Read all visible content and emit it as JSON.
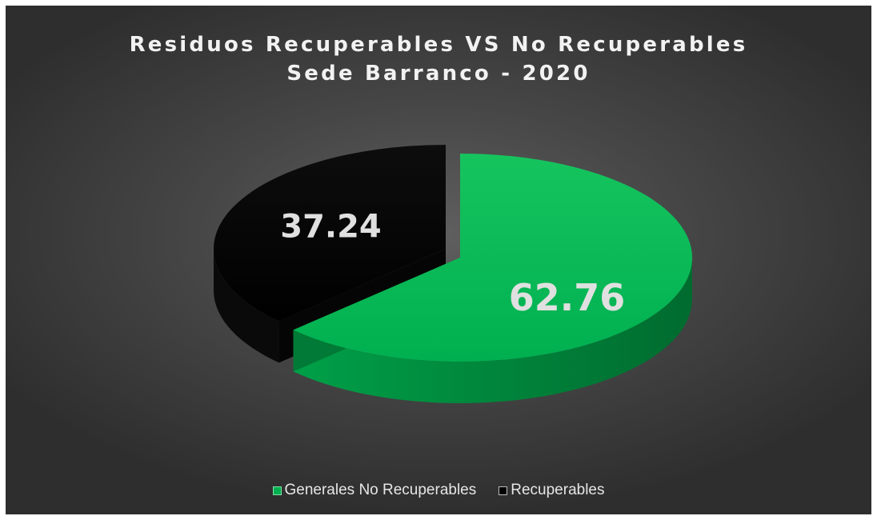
{
  "chart_data": {
    "type": "pie",
    "title": "Residuos Recuperables VS No Recuperables\nSede Barranco - 2020",
    "title_lines": [
      "Residuos Recuperables VS No Recuperables",
      "Sede Barranco - 2020"
    ],
    "categories": [
      "Generales No Recuperables",
      "Recuperables"
    ],
    "values": [
      62.76,
      37.24
    ],
    "data_labels": [
      "62.76",
      "37.24"
    ],
    "colors": [
      "#00b050",
      "#000000"
    ],
    "exploded": true,
    "style": "3d",
    "legend_position": "bottom"
  }
}
